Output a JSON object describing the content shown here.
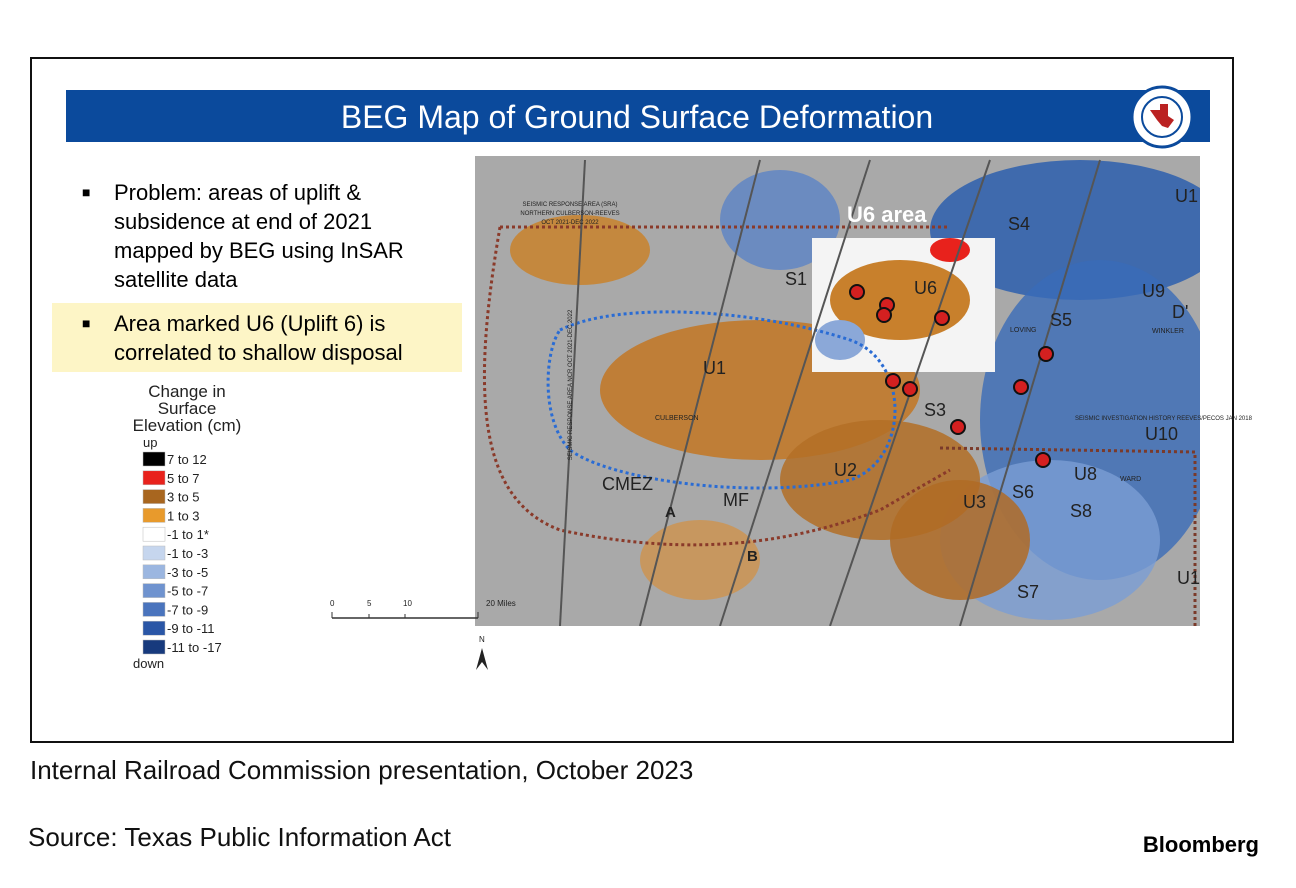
{
  "header": {
    "title": "BEG Map of Ground Surface Deformation"
  },
  "bullets": [
    "Problem: areas of uplift & subsidence at end of 2021 mapped by BEG using InSAR satellite data",
    "Area marked U6 (Uplift 6) is correlated to shallow disposal"
  ],
  "legend": {
    "title": "Change in Surface Elevation (cm)",
    "top": "up",
    "bottom": "down",
    "items": [
      {
        "label": "7 to 12",
        "color": "#000000"
      },
      {
        "label": "5 to 7",
        "color": "#e8221c"
      },
      {
        "label": "3 to 5",
        "color": "#a8661f"
      },
      {
        "label": "1 to 3",
        "color": "#e89a2c"
      },
      {
        "label": "-1 to 1*",
        "color": "#ffffff"
      },
      {
        "label": "-1 to -3",
        "color": "#c6d6ee"
      },
      {
        "label": "-3 to -5",
        "color": "#9bb6e0"
      },
      {
        "label": "-5 to -7",
        "color": "#6f93cf"
      },
      {
        "label": "-7 to -9",
        "color": "#4a74bd"
      },
      {
        "label": "-9 to -11",
        "color": "#2a56a6"
      },
      {
        "label": "-11 to -17",
        "color": "#173a7d"
      }
    ]
  },
  "map": {
    "labels": [
      "U6 area",
      "S1",
      "U6",
      "S4",
      "U1",
      "U9",
      "D'",
      "S5",
      "LOVING",
      "WINKLER",
      "U1",
      "S3",
      "CULBERSON",
      "U10",
      "U2",
      "CMEZ",
      "MF",
      "A",
      "B",
      "U3",
      "S6",
      "U8",
      "WARD",
      "S8",
      "U1",
      "S7",
      "SEISMIC RESPONSE AREA (SRA)",
      "NORTHERN CULBERSON-REEVES",
      "OCT 2021-DEC 2022",
      "SEISMIC RESPONSE AREA NCR OCT 2021-DEC 2022",
      "SEISMIC INVESTIGATION HISTORY REEVES/PECOS JAN 2018"
    ]
  },
  "scale": {
    "ticks": [
      "0",
      "5",
      "10",
      "20 Miles"
    ],
    "north": "N"
  },
  "footer": {
    "caption": "Internal Railroad Commission presentation, October 2023",
    "source": "Source: Texas Public Information Act",
    "brand": "Bloomberg"
  }
}
